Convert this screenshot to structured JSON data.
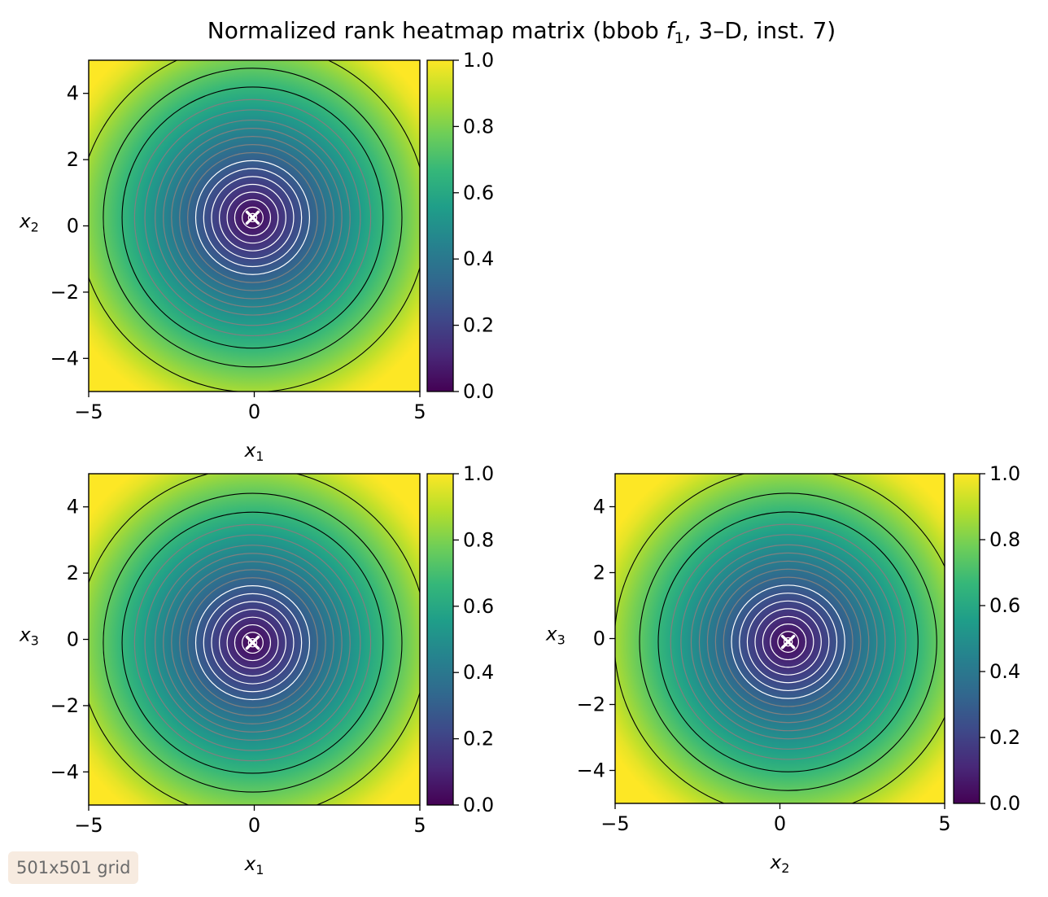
{
  "title_main": "Normalized rank heatmap matrix (bbob ",
  "title_func": "f",
  "title_sub": "1",
  "title_rest": ", 3–D, inst. 7)",
  "badge": "501x501 grid",
  "colormap": "viridis",
  "colors": {
    "contour_inner": "#ffffff",
    "contour_middle": "#808080",
    "contour_outer": "#000000",
    "marker": "#ffffff",
    "badge_bg": "#f7ebe0"
  },
  "chart_data": [
    {
      "type": "heatmap",
      "id": "x1-x2",
      "xlabel": "x",
      "xlabel_sub": "1",
      "ylabel": "x",
      "ylabel_sub": "2",
      "xlim": [
        -5,
        5
      ],
      "ylim": [
        -5,
        5
      ],
      "xticks": [
        -5,
        0,
        5
      ],
      "xtick_labels": [
        "−5",
        "0",
        "5"
      ],
      "yticks": [
        -4,
        -2,
        0,
        2,
        4
      ],
      "ytick_labels": [
        "−4",
        "−2",
        "0",
        "2",
        "4"
      ],
      "optimum": [
        -0.05,
        0.25
      ],
      "colorbar_range": [
        0.0,
        1.0
      ],
      "colorbar_ticks": [
        "0.0",
        "0.2",
        "0.4",
        "0.6",
        "0.8",
        "1.0"
      ],
      "contour_levels": [
        0.025,
        0.06,
        0.1,
        0.14,
        0.18,
        0.22,
        0.26,
        0.3,
        0.34,
        0.38,
        0.42,
        0.46,
        0.5,
        0.55,
        0.6,
        0.66,
        0.75,
        0.87
      ]
    },
    {
      "type": "heatmap",
      "id": "x1-x3",
      "xlabel": "x",
      "xlabel_sub": "1",
      "ylabel": "x",
      "ylabel_sub": "3",
      "xlim": [
        -5,
        5
      ],
      "ylim": [
        -5,
        5
      ],
      "xticks": [
        -5,
        0,
        5
      ],
      "xtick_labels": [
        "−5",
        "0",
        "5"
      ],
      "yticks": [
        -4,
        -2,
        0,
        2,
        4
      ],
      "ytick_labels": [
        "−4",
        "−2",
        "0",
        "2",
        "4"
      ],
      "optimum": [
        -0.05,
        -0.1
      ],
      "colorbar_range": [
        0.0,
        1.0
      ],
      "colorbar_ticks": [
        "0.0",
        "0.2",
        "0.4",
        "0.6",
        "0.8",
        "1.0"
      ],
      "contour_levels": [
        0.025,
        0.06,
        0.1,
        0.14,
        0.18,
        0.22,
        0.26,
        0.3,
        0.34,
        0.38,
        0.42,
        0.46,
        0.5,
        0.55,
        0.6,
        0.66,
        0.75,
        0.87
      ]
    },
    {
      "type": "heatmap",
      "id": "x2-x3",
      "xlabel": "x",
      "xlabel_sub": "2",
      "ylabel": "x",
      "ylabel_sub": "3",
      "xlim": [
        -5,
        5
      ],
      "ylim": [
        -5,
        5
      ],
      "xticks": [
        -5,
        0,
        5
      ],
      "xtick_labels": [
        "−5",
        "0",
        "5"
      ],
      "yticks": [
        -4,
        -2,
        0,
        2,
        4
      ],
      "ytick_labels": [
        "−4",
        "−2",
        "0",
        "2",
        "4"
      ],
      "optimum": [
        0.25,
        -0.1
      ],
      "colorbar_range": [
        0.0,
        1.0
      ],
      "colorbar_ticks": [
        "0.0",
        "0.2",
        "0.4",
        "0.6",
        "0.8",
        "1.0"
      ],
      "contour_levels": [
        0.025,
        0.06,
        0.1,
        0.14,
        0.18,
        0.22,
        0.26,
        0.3,
        0.34,
        0.38,
        0.42,
        0.46,
        0.5,
        0.55,
        0.6,
        0.66,
        0.75,
        0.87
      ]
    }
  ]
}
